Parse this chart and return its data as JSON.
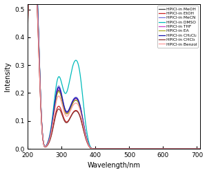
{
  "title": "",
  "xlabel": "Wavelength/nm",
  "ylabel": "Intensity",
  "xlim": [
    200,
    710
  ],
  "ylim": [
    0,
    0.52
  ],
  "yticks": [
    0.0,
    0.1,
    0.2,
    0.3,
    0.4,
    0.5
  ],
  "xticks": [
    200,
    300,
    400,
    500,
    600,
    700
  ],
  "legend_entries": [
    "HPICl-in MeOH",
    "HPICl-in EtOH",
    "HPICl-in MeCN",
    "HPICl-in DMSO",
    "HPICl-in THF",
    "HPICl-in EA",
    "HPICl-in CH₂Cl₂",
    "HPICl-in CHCl₃",
    "HPICl-in Benzol"
  ],
  "colors": [
    "#404040",
    "#cc2222",
    "#7777dd",
    "#00bbbb",
    "#cc44cc",
    "#aaaa22",
    "#1111aa",
    "#883333",
    "#ff9999"
  ],
  "lw": 0.9,
  "background_color": "#ffffff"
}
